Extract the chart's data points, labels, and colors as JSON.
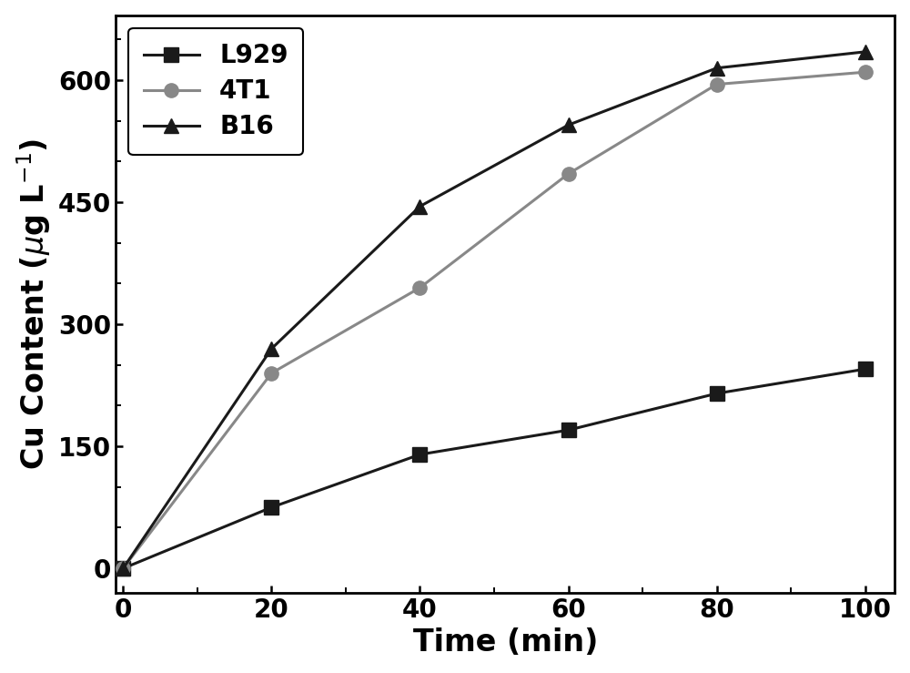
{
  "x": [
    0,
    20,
    40,
    60,
    80,
    100
  ],
  "L929": [
    0,
    75,
    140,
    170,
    215,
    245
  ],
  "4T1": [
    0,
    240,
    345,
    485,
    595,
    610
  ],
  "B16": [
    0,
    270,
    445,
    545,
    615,
    635
  ],
  "xlabel": "Time (min)",
  "ylim": [
    -30,
    680
  ],
  "xlim": [
    -1,
    104
  ],
  "yticks": [
    0,
    150,
    300,
    450,
    600
  ],
  "xticks": [
    0,
    20,
    40,
    60,
    80,
    100
  ],
  "line_color_L929": "#1a1a1a",
  "line_color_4T1": "#888888",
  "line_color_B16": "#1a1a1a",
  "marker_color_4T1": "#888888",
  "linewidth": 2.2,
  "markersize": 11,
  "legend_labels": [
    "L929",
    "4T1",
    "B16"
  ],
  "axis_label_fontsize": 24,
  "tick_fontsize": 20,
  "legend_fontsize": 20,
  "minor_xtick_interval": 10,
  "minor_ytick_interval": 50
}
